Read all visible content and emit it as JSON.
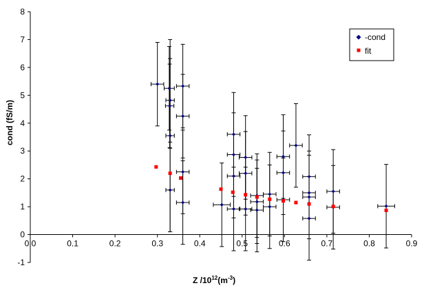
{
  "chart_data": {
    "type": "scatter",
    "xlabel": "Z /10^12(m^-3)",
    "xlabel_parts": {
      "main": "Z /10",
      "exp": "12",
      "unit_open": "(m",
      "unit_exp": "-3",
      "unit_close": ")"
    },
    "ylabel": "cond (fS/m)",
    "xlim": [
      0,
      0.9
    ],
    "ylim": [
      -1,
      8
    ],
    "xticks": [
      "0.0",
      "0.1",
      "0.2",
      "0.3",
      "0.4",
      "0.5",
      "0.6",
      "0.7",
      "0.8",
      "0.9"
    ],
    "xtick_values": [
      0,
      0.1,
      0.2,
      0.3,
      0.4,
      0.5,
      0.6,
      0.7,
      0.8,
      0.9
    ],
    "yticks": [
      "-1",
      "0",
      "1",
      "2",
      "3",
      "4",
      "5",
      "6",
      "7",
      "8"
    ],
    "ytick_values": [
      -1,
      0,
      1,
      2,
      3,
      4,
      5,
      6,
      7,
      8
    ],
    "grid": false,
    "legend_position": "top-right",
    "series": [
      {
        "name": "-cond",
        "color": "#000080",
        "marker": "diamond",
        "points": [
          {
            "x": 0.3,
            "y": 5.4,
            "xerr": 0.015,
            "yerr": 1.5
          },
          {
            "x": 0.328,
            "y": 5.25,
            "xerr": 0.012,
            "yerr": 1.5
          },
          {
            "x": 0.33,
            "y": 4.82,
            "xerr": 0.01,
            "yerr": 1.5
          },
          {
            "x": 0.329,
            "y": 4.62,
            "xerr": 0.01,
            "yerr": 1.5
          },
          {
            "x": 0.33,
            "y": 3.55,
            "xerr": 0.01,
            "yerr": 3.45
          },
          {
            "x": 0.33,
            "y": 1.6,
            "xerr": 0.01,
            "yerr": 1.5
          },
          {
            "x": 0.36,
            "y": 5.33,
            "xerr": 0.015,
            "yerr": 1.5
          },
          {
            "x": 0.36,
            "y": 4.25,
            "xerr": 0.015,
            "yerr": 1.5
          },
          {
            "x": 0.36,
            "y": 2.25,
            "xerr": 0.015,
            "yerr": 1.5
          },
          {
            "x": 0.36,
            "y": 1.15,
            "xerr": 0.015,
            "yerr": 1.5
          },
          {
            "x": 0.452,
            "y": 1.07,
            "xerr": 0.02,
            "yerr": 1.5
          },
          {
            "x": 0.48,
            "y": 3.6,
            "xerr": 0.015,
            "yerr": 1.5
          },
          {
            "x": 0.48,
            "y": 2.87,
            "xerr": 0.015,
            "yerr": 1.5
          },
          {
            "x": 0.48,
            "y": 2.1,
            "xerr": 0.015,
            "yerr": 1.5
          },
          {
            "x": 0.48,
            "y": 0.92,
            "xerr": 0.015,
            "yerr": 1.5
          },
          {
            "x": 0.508,
            "y": 2.77,
            "xerr": 0.015,
            "yerr": 1.5
          },
          {
            "x": 0.508,
            "y": 2.2,
            "xerr": 0.015,
            "yerr": 1.5
          },
          {
            "x": 0.508,
            "y": 0.92,
            "xerr": 0.015,
            "yerr": 1.5
          },
          {
            "x": 0.535,
            "y": 1.4,
            "xerr": 0.015,
            "yerr": 1.5
          },
          {
            "x": 0.535,
            "y": 1.18,
            "xerr": 0.015,
            "yerr": 1.5
          },
          {
            "x": 0.535,
            "y": 0.88,
            "xerr": 0.015,
            "yerr": 1.5
          },
          {
            "x": 0.565,
            "y": 1.45,
            "xerr": 0.015,
            "yerr": 1.5
          },
          {
            "x": 0.565,
            "y": 1.0,
            "xerr": 0.015,
            "yerr": 1.5
          },
          {
            "x": 0.597,
            "y": 2.8,
            "xerr": 0.015,
            "yerr": 1.5
          },
          {
            "x": 0.597,
            "y": 2.22,
            "xerr": 0.015,
            "yerr": 1.5
          },
          {
            "x": 0.597,
            "y": 1.25,
            "xerr": 0.015,
            "yerr": 1.5
          },
          {
            "x": 0.627,
            "y": 3.2,
            "xerr": 0.015,
            "yerr": 1.5
          },
          {
            "x": 0.658,
            "y": 2.08,
            "xerr": 0.015,
            "yerr": 1.5
          },
          {
            "x": 0.658,
            "y": 1.5,
            "xerr": 0.015,
            "yerr": 1.5
          },
          {
            "x": 0.658,
            "y": 1.35,
            "xerr": 0.015,
            "yerr": 1.5
          },
          {
            "x": 0.658,
            "y": 0.58,
            "xerr": 0.015,
            "yerr": 1.5
          },
          {
            "x": 0.715,
            "y": 1.55,
            "xerr": 0.015,
            "yerr": 1.5
          },
          {
            "x": 0.715,
            "y": 0.98,
            "xerr": 0.015,
            "yerr": 1.5
          },
          {
            "x": 0.84,
            "y": 1.02,
            "xerr": 0.02,
            "yerr": 1.5
          }
        ]
      },
      {
        "name": "fit",
        "color": "#ff0000",
        "marker": "square",
        "points": [
          {
            "x": 0.297,
            "y": 2.43
          },
          {
            "x": 0.33,
            "y": 2.2
          },
          {
            "x": 0.355,
            "y": 2.03
          },
          {
            "x": 0.45,
            "y": 1.63
          },
          {
            "x": 0.478,
            "y": 1.52
          },
          {
            "x": 0.508,
            "y": 1.43
          },
          {
            "x": 0.535,
            "y": 1.35
          },
          {
            "x": 0.565,
            "y": 1.27
          },
          {
            "x": 0.597,
            "y": 1.21
          },
          {
            "x": 0.627,
            "y": 1.15
          },
          {
            "x": 0.658,
            "y": 1.1
          },
          {
            "x": 0.715,
            "y": 1.01
          },
          {
            "x": 0.84,
            "y": 0.87
          }
        ]
      }
    ]
  }
}
